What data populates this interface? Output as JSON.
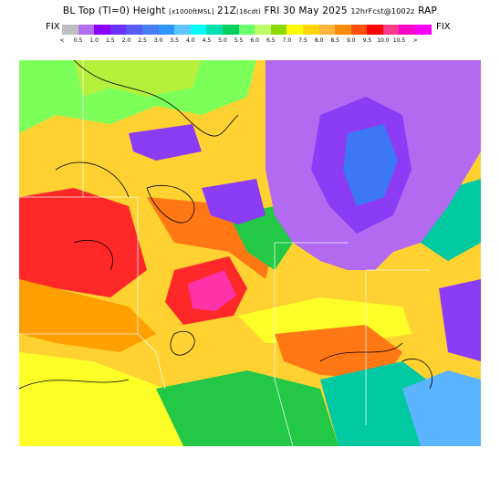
{
  "header": {
    "title_main": "BL Top (TI=0) Height",
    "title_units": "[x1000ftMSL]",
    "title_time": "21Z",
    "title_local": "(16cdt)",
    "title_date": "FRI 30 May 2025",
    "title_fcst": "12hrFcst@1002z",
    "title_model": "RAP",
    "fix_left": "FIX",
    "fix_right": "FIX"
  },
  "colorbar": {
    "colors": [
      "#bfbfbf",
      "#b26ef2",
      "#8c00ff",
      "#6a32ff",
      "#5a5af5",
      "#4a7ef5",
      "#2d96ff",
      "#5fc4ff",
      "#00ffff",
      "#00e0b0",
      "#00d060",
      "#6bff6b",
      "#bfff6b",
      "#8cd900",
      "#ffff00",
      "#ffd600",
      "#ffb43c",
      "#ff8c00",
      "#ff5000",
      "#ff0000",
      "#ff3c8c",
      "#ff00c8",
      "#ff00ff"
    ],
    "tick_labels": [
      "<",
      "0.5",
      "1.0",
      "1.5",
      "2.0",
      "2.5",
      "3.0",
      "3.5",
      "4.0",
      "4.5",
      "5.0",
      "5.5",
      "6.0",
      "6.5",
      "7.0",
      "7.5",
      "8.0",
      "8.5",
      "9.0",
      "9.5",
      "10.0",
      "10.5",
      ">"
    ]
  },
  "map_colors": {
    "lake": "#b36af0",
    "purple": "#8c3cf5",
    "blue": "#3c78f5",
    "lightblue": "#5ab4ff",
    "cyan": "#00e6e6",
    "teal": "#00c8a0",
    "green": "#22c846",
    "lightgreen": "#7dff5a",
    "yellowgreen": "#b4f03c",
    "yellow": "#ffff28",
    "gold": "#ffd232",
    "orange": "#ffa000",
    "darkorange": "#ff7814",
    "red": "#ff2828",
    "magenta": "#ff32aa",
    "pink": "#ff82c8"
  }
}
